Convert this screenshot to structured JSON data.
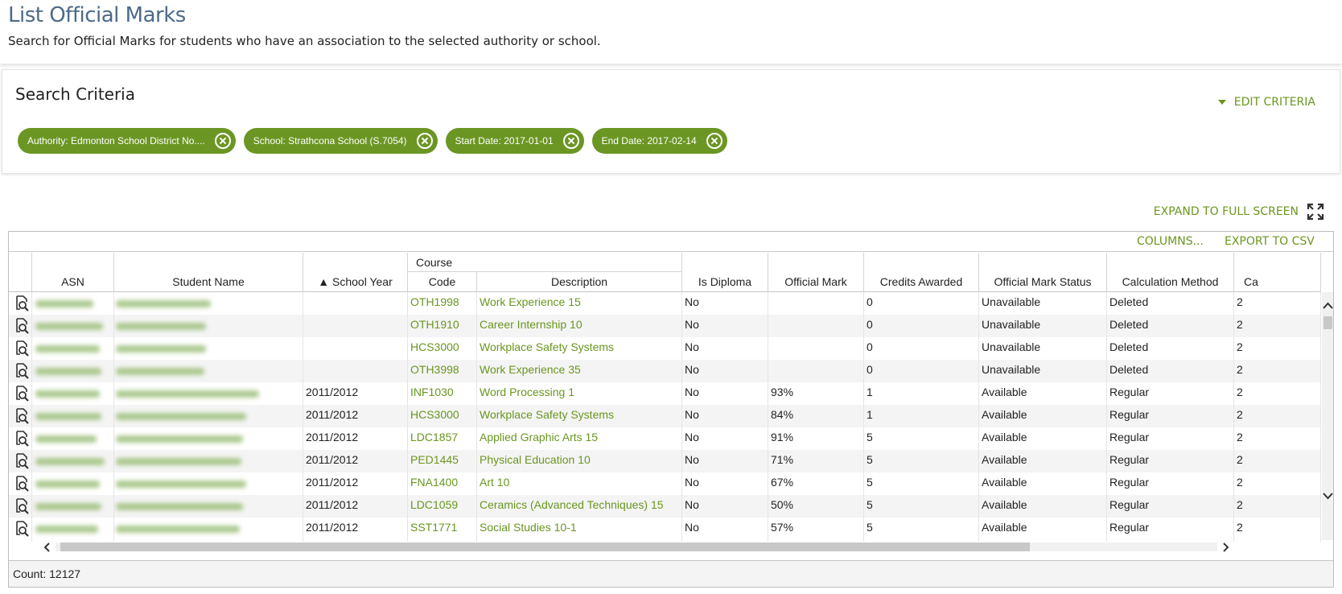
{
  "page": {
    "title": "List Official Marks",
    "subtitle": "Search for Official Marks for students who have an association to the selected authority or school."
  },
  "criteria": {
    "title": "Search Criteria",
    "edit_label": "EDIT CRITERIA",
    "chips": [
      "Authority: Edmonton School District No....",
      "School: Strathcona School (S.7054)",
      "Start Date: 2017-01-01",
      "End Date: 2017-02-14"
    ]
  },
  "expand_label": "EXPAND TO FULL SCREEN",
  "toolbar": {
    "columns_label": "COLUMNS...",
    "export_label": "EXPORT TO CSV"
  },
  "columns": {
    "asn": "ASN",
    "student_name": "Student Name",
    "school_year": "▲ School Year",
    "course_group": "Course",
    "code": "Code",
    "description": "Description",
    "is_diploma": "Is Diploma",
    "official_mark": "Official Mark",
    "credits_awarded": "Credits Awarded",
    "status": "Official Mark Status",
    "calc_method": "Calculation Method",
    "next_col": "Ca"
  },
  "rows": [
    {
      "year": "",
      "code": "OTH1998",
      "desc": "Work Experience 15",
      "diploma": "No",
      "mark": "",
      "credits": "0",
      "status": "Unavailable",
      "method": "Deleted",
      "next": "2"
    },
    {
      "year": "",
      "code": "OTH1910",
      "desc": "Career Internship 10",
      "diploma": "No",
      "mark": "",
      "credits": "0",
      "status": "Unavailable",
      "method": "Deleted",
      "next": "2"
    },
    {
      "year": "",
      "code": "HCS3000",
      "desc": "Workplace Safety Systems",
      "diploma": "No",
      "mark": "",
      "credits": "0",
      "status": "Unavailable",
      "method": "Deleted",
      "next": "2"
    },
    {
      "year": "",
      "code": "OTH3998",
      "desc": "Work Experience 35",
      "diploma": "No",
      "mark": "",
      "credits": "0",
      "status": "Unavailable",
      "method": "Deleted",
      "next": "2"
    },
    {
      "year": "2011/2012",
      "code": "INF1030",
      "desc": "Word Processing 1",
      "diploma": "No",
      "mark": "93%",
      "credits": "1",
      "status": "Available",
      "method": "Regular",
      "next": "2"
    },
    {
      "year": "2011/2012",
      "code": "HCS3000",
      "desc": "Workplace Safety Systems",
      "diploma": "No",
      "mark": "84%",
      "credits": "1",
      "status": "Available",
      "method": "Regular",
      "next": "2"
    },
    {
      "year": "2011/2012",
      "code": "LDC1857",
      "desc": "Applied Graphic Arts 15",
      "diploma": "No",
      "mark": "91%",
      "credits": "5",
      "status": "Available",
      "method": "Regular",
      "next": "2"
    },
    {
      "year": "2011/2012",
      "code": "PED1445",
      "desc": "Physical Education 10",
      "diploma": "No",
      "mark": "71%",
      "credits": "5",
      "status": "Available",
      "method": "Regular",
      "next": "2"
    },
    {
      "year": "2011/2012",
      "code": "FNA1400",
      "desc": "Art 10",
      "diploma": "No",
      "mark": "67%",
      "credits": "5",
      "status": "Available",
      "method": "Regular",
      "next": "2"
    },
    {
      "year": "2011/2012",
      "code": "LDC1059",
      "desc": "Ceramics (Advanced Techniques) 15",
      "diploma": "No",
      "mark": "50%",
      "credits": "5",
      "status": "Available",
      "method": "Regular",
      "next": "2"
    },
    {
      "year": "2011/2012",
      "code": "SST1771",
      "desc": "Social Studies 10-1",
      "diploma": "No",
      "mark": "57%",
      "credits": "5",
      "status": "Available",
      "method": "Regular",
      "next": "2"
    }
  ],
  "footer": {
    "count_label": "Count: 12127"
  },
  "colors": {
    "accent": "#6a961f",
    "chip": "#6b9623",
    "title": "#4d6a8a"
  }
}
